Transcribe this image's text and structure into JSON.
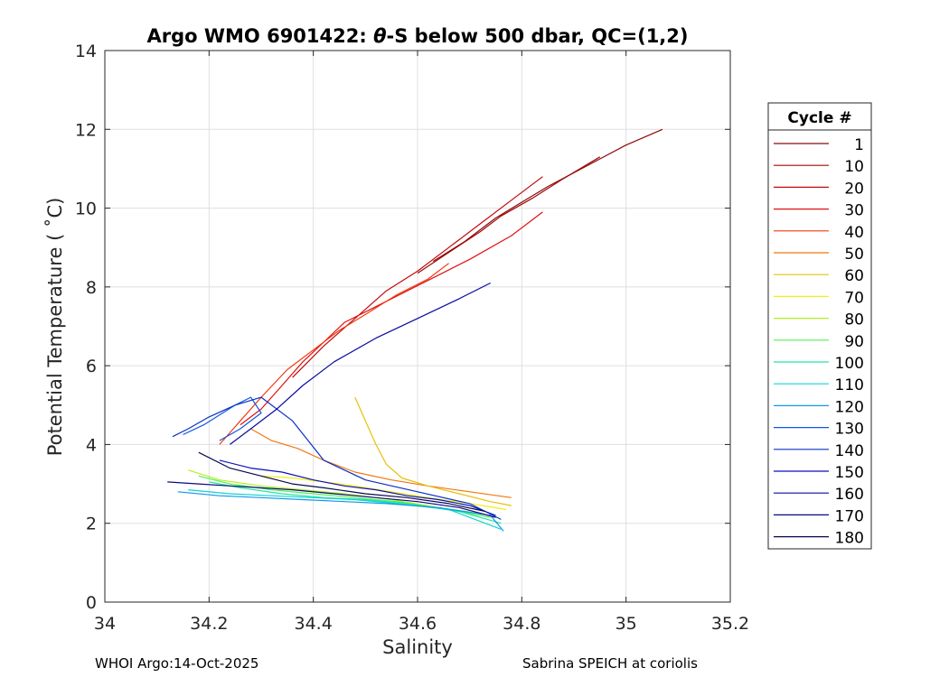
{
  "chart_data": {
    "type": "line",
    "title_prefix": "Argo WMO 6901422: ",
    "title_theta": "θ",
    "title_suffix": "-S below 500 dbar,  QC=(1,2)",
    "xlabel": "Salinity",
    "ylabel": "Potential Temperature ( ˚C)",
    "xlim": [
      34.0,
      35.2
    ],
    "ylim": [
      0,
      14
    ],
    "xticks": [
      34.0,
      34.2,
      34.4,
      34.6,
      34.8,
      35.0,
      35.2
    ],
    "xtick_labels": [
      "34",
      "34.2",
      "34.4",
      "34.6",
      "34.8",
      "35",
      "35.2"
    ],
    "yticks": [
      0,
      2,
      4,
      6,
      8,
      10,
      12,
      14
    ],
    "ytick_labels": [
      "0",
      "2",
      "4",
      "6",
      "8",
      "10",
      "12",
      "14"
    ],
    "grid": true,
    "legend_title": "Cycle #",
    "legend_position": "outside-right",
    "series": [
      {
        "name": "1",
        "color": "#8a0a0a",
        "x": [
          34.63,
          34.66,
          34.69,
          34.72,
          34.75,
          34.8,
          34.85,
          34.9,
          34.95,
          35.0,
          35.07
        ],
        "y": [
          8.65,
          8.9,
          9.15,
          9.45,
          9.75,
          10.15,
          10.55,
          10.9,
          11.25,
          11.6,
          12.0
        ]
      },
      {
        "name": "10",
        "color": "#a00808",
        "x": [
          34.6,
          34.64,
          34.68,
          34.72,
          34.76,
          34.82,
          34.88,
          34.95
        ],
        "y": [
          8.35,
          8.7,
          9.05,
          9.4,
          9.8,
          10.25,
          10.75,
          11.3
        ]
      },
      {
        "name": "20",
        "color": "#c00a0a",
        "x": [
          34.36,
          34.42,
          34.48,
          34.54,
          34.6,
          34.66,
          34.72,
          34.78,
          34.84
        ],
        "y": [
          5.7,
          6.5,
          7.2,
          7.9,
          8.4,
          9.0,
          9.6,
          10.2,
          10.8
        ]
      },
      {
        "name": "30",
        "color": "#e01010",
        "x": [
          34.26,
          34.3,
          34.34,
          34.38,
          34.42,
          34.46,
          34.52,
          34.58,
          34.64,
          34.7,
          34.78,
          34.84
        ],
        "y": [
          4.5,
          4.9,
          5.5,
          6.1,
          6.6,
          7.1,
          7.5,
          7.9,
          8.3,
          8.7,
          9.3,
          9.9
        ]
      },
      {
        "name": "40",
        "color": "#f03a10",
        "x": [
          34.22,
          34.26,
          34.3,
          34.35,
          34.4,
          34.45,
          34.5,
          34.56,
          34.62,
          34.66
        ],
        "y": [
          4.0,
          4.6,
          5.2,
          5.9,
          6.4,
          6.9,
          7.3,
          7.8,
          8.2,
          8.6
        ]
      },
      {
        "name": "50",
        "color": "#f07810",
        "x": [
          34.28,
          34.32,
          34.37,
          34.42,
          34.48,
          34.55,
          34.62,
          34.7,
          34.78
        ],
        "y": [
          4.4,
          4.1,
          3.9,
          3.6,
          3.3,
          3.1,
          2.95,
          2.8,
          2.65
        ]
      },
      {
        "name": "60",
        "color": "#e8c00a",
        "x": [
          34.48,
          34.5,
          34.52,
          34.54,
          34.57,
          34.62,
          34.68,
          34.74,
          34.78
        ],
        "y": [
          5.2,
          4.6,
          4.0,
          3.5,
          3.15,
          2.95,
          2.75,
          2.55,
          2.45
        ]
      },
      {
        "name": "70",
        "color": "#f0f010",
        "x": [
          34.3,
          34.36,
          34.42,
          34.48,
          34.55,
          34.62,
          34.7,
          34.77
        ],
        "y": [
          3.2,
          3.15,
          3.05,
          2.95,
          2.8,
          2.65,
          2.5,
          2.35
        ]
      },
      {
        "name": "80",
        "color": "#b4f020",
        "x": [
          34.16,
          34.22,
          34.3,
          34.38,
          34.46,
          34.55,
          34.64,
          34.72
        ],
        "y": [
          3.35,
          3.1,
          2.95,
          2.85,
          2.75,
          2.6,
          2.4,
          2.25
        ]
      },
      {
        "name": "90",
        "color": "#50f050",
        "x": [
          34.18,
          34.24,
          34.32,
          34.4,
          34.48,
          34.56,
          34.66,
          34.74
        ],
        "y": [
          3.2,
          3.0,
          2.85,
          2.75,
          2.65,
          2.55,
          2.35,
          2.15
        ]
      },
      {
        "name": "100",
        "color": "#20e8a0",
        "x": [
          34.2,
          34.26,
          34.34,
          34.42,
          34.5,
          34.58,
          34.68,
          34.76
        ],
        "y": [
          3.05,
          2.9,
          2.75,
          2.65,
          2.6,
          2.5,
          2.3,
          2.0
        ]
      },
      {
        "name": "110",
        "color": "#10d0d8",
        "x": [
          34.16,
          34.24,
          34.32,
          34.4,
          34.48,
          34.56,
          34.66,
          34.76
        ],
        "y": [
          2.85,
          2.75,
          2.7,
          2.65,
          2.6,
          2.5,
          2.35,
          1.85
        ]
      },
      {
        "name": "120",
        "color": "#1098e8",
        "x": [
          34.14,
          34.22,
          34.3,
          34.38,
          34.46,
          34.54,
          34.64,
          34.74,
          34.765
        ],
        "y": [
          2.8,
          2.7,
          2.65,
          2.6,
          2.55,
          2.5,
          2.4,
          2.2,
          1.8
        ]
      },
      {
        "name": "130",
        "color": "#1058e0",
        "x": [
          34.15,
          34.19,
          34.25,
          34.28,
          34.3,
          34.26,
          34.22
        ],
        "y": [
          4.25,
          4.5,
          5.0,
          5.2,
          4.8,
          4.4,
          4.1
        ]
      },
      {
        "name": "140",
        "color": "#0a30c8",
        "x": [
          34.13,
          34.16,
          34.2,
          34.25,
          34.3,
          34.36,
          34.42,
          34.5,
          34.6,
          34.7,
          34.76
        ],
        "y": [
          4.2,
          4.4,
          4.7,
          5.0,
          5.2,
          4.6,
          3.6,
          3.1,
          2.8,
          2.5,
          2.1
        ]
      },
      {
        "name": "150",
        "color": "#0a10b8",
        "x": [
          34.22,
          34.28,
          34.34,
          34.4,
          34.46,
          34.52,
          34.58,
          34.64,
          34.7,
          34.75
        ],
        "y": [
          3.6,
          3.4,
          3.3,
          3.1,
          2.95,
          2.85,
          2.7,
          2.6,
          2.45,
          2.2
        ]
      },
      {
        "name": "160",
        "color": "#0a0aa0",
        "x": [
          34.24,
          34.28,
          34.33,
          34.38,
          34.44,
          34.52,
          34.6,
          34.68,
          34.74
        ],
        "y": [
          4.0,
          4.4,
          4.9,
          5.5,
          6.1,
          6.7,
          7.2,
          7.7,
          8.1
        ]
      },
      {
        "name": "170",
        "color": "#0a0a80",
        "x": [
          34.12,
          34.18,
          34.24,
          34.3,
          34.36,
          34.44,
          34.52,
          34.6,
          34.68,
          34.75
        ],
        "y": [
          3.05,
          3.0,
          2.95,
          2.9,
          2.85,
          2.75,
          2.65,
          2.55,
          2.4,
          2.15
        ]
      },
      {
        "name": "180",
        "color": "#080850",
        "x": [
          34.18,
          34.24,
          34.3,
          34.36,
          34.42,
          34.5,
          34.58,
          34.66,
          34.73
        ],
        "y": [
          3.8,
          3.4,
          3.2,
          3.0,
          2.9,
          2.75,
          2.65,
          2.5,
          2.3
        ]
      }
    ]
  },
  "footer": {
    "left": "WHOI Argo:14-Oct-2025",
    "right": "Sabrina SPEICH at coriolis"
  }
}
